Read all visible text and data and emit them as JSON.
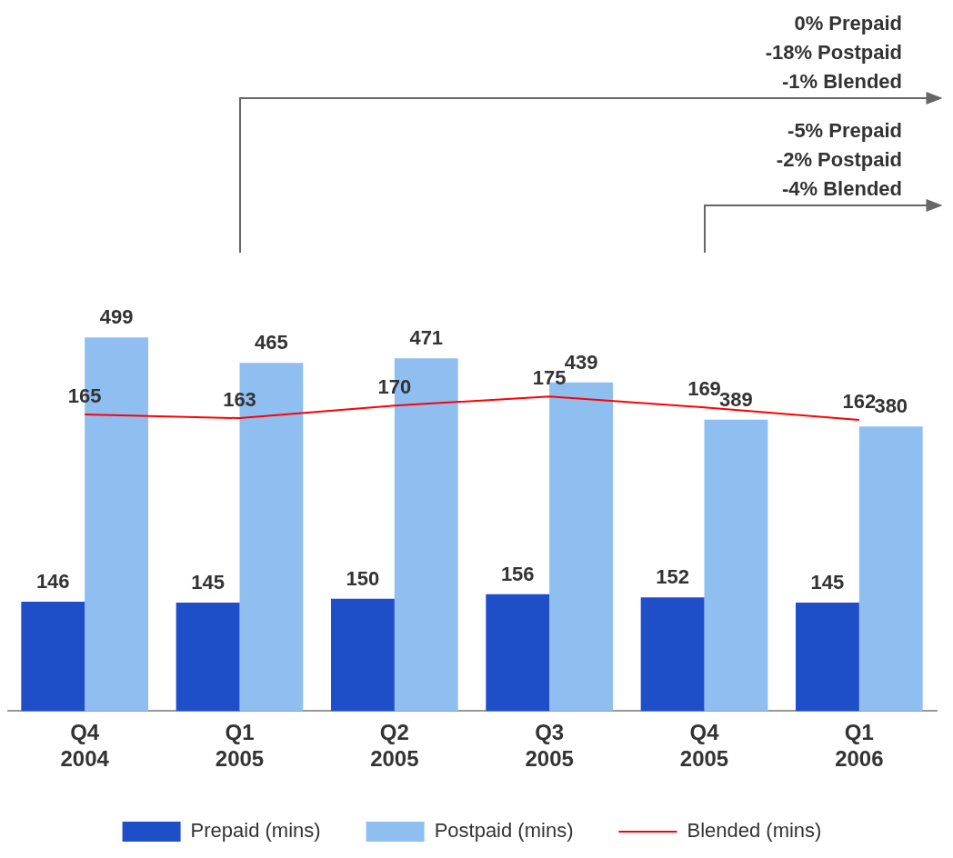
{
  "chart_data": {
    "type": "bar",
    "categories": [
      "Q4 2004",
      "Q1 2005",
      "Q2 2005",
      "Q3 2005",
      "Q4 2005",
      "Q1 2006"
    ],
    "series": [
      {
        "name": "Prepaid (mins)",
        "color": "#1f4fc8",
        "values": [
          146,
          145,
          150,
          156,
          152,
          145
        ]
      },
      {
        "name": "Postpaid (mins)",
        "color": "#8fbff0",
        "values": [
          499,
          465,
          471,
          439,
          389,
          380
        ]
      },
      {
        "name": "Blended (mins)",
        "type": "line",
        "axis": "y2",
        "color": "#ff0000",
        "values": [
          165,
          163,
          170,
          175,
          169,
          162
        ]
      }
    ],
    "tick_labels": "x",
    "data_labels": true,
    "grid": false,
    "legend": "bottom",
    "marker": "none",
    "line_style": "solid",
    "annotations": [
      "0% Prepaid\n-18% Postpaid\n-1% Blended",
      "-5% Prepaid\n-2% Postpaid\n-4% Blended"
    ]
  }
}
